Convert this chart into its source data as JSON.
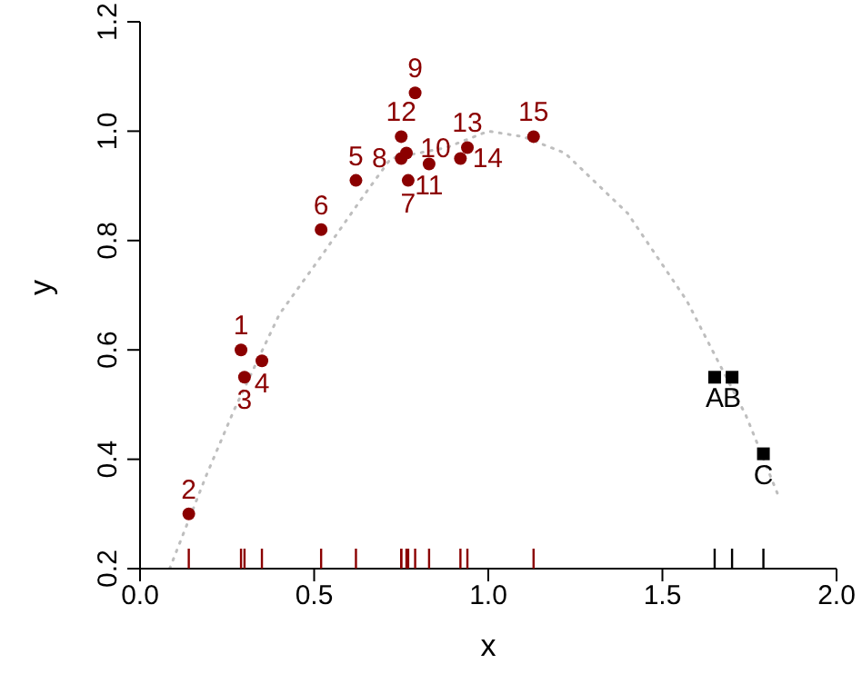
{
  "chart_data": {
    "type": "scatter",
    "xlabel": "x",
    "ylabel": "y",
    "xlim": [
      0,
      2
    ],
    "ylim": [
      0.2,
      1.2
    ],
    "xticks": [
      {
        "value": 0,
        "label": "0.0"
      },
      {
        "value": 0.5,
        "label": "0.5"
      },
      {
        "value": 1,
        "label": "1.0"
      },
      {
        "value": 1.5,
        "label": "1.5"
      },
      {
        "value": 2,
        "label": "2.0"
      }
    ],
    "yticks": [
      {
        "value": 0.2,
        "label": "0.2"
      },
      {
        "value": 0.4,
        "label": "0.4"
      },
      {
        "value": 0.6,
        "label": "0.6"
      },
      {
        "value": 0.8,
        "label": "0.8"
      },
      {
        "value": 1,
        "label": "1.0"
      },
      {
        "value": 1.2,
        "label": "1.2"
      }
    ],
    "grid": false,
    "series": [
      {
        "type": "line",
        "color": "#bebebe",
        "line_style": "dotted",
        "marker": "none",
        "x": [
          0.085,
          0.19,
          0.27,
          0.4,
          0.53,
          0.64,
          0.72,
          0.88,
          1.0,
          1.1,
          1.22,
          1.4,
          1.57,
          1.74,
          1.835
        ],
        "values": [
          0.2,
          0.37,
          0.49,
          0.665,
          0.78,
          0.88,
          0.95,
          0.97,
          1.0,
          0.99,
          0.96,
          0.85,
          0.69,
          0.48,
          0.33
        ]
      },
      {
        "color": "#8b0000",
        "marker": "circle",
        "x": [
          0.29,
          0.14,
          0.3,
          0.35,
          0.62,
          0.52,
          0.77,
          0.75,
          0.79,
          0.765,
          0.83,
          0.75,
          0.94,
          0.92,
          1.13
        ],
        "values": [
          0.6,
          0.3,
          0.55,
          0.58,
          0.91,
          0.82,
          0.91,
          0.95,
          1.07,
          0.96,
          0.94,
          0.99,
          0.97,
          0.95,
          0.99
        ]
      },
      {
        "color": "#000000",
        "marker": "square",
        "x": [
          1.65,
          1.7,
          1.79
        ],
        "values": [
          0.55,
          0.55,
          0.41
        ]
      }
    ],
    "annotations": [
      {
        "text": "1",
        "x": 0.29,
        "y": 0.6
      },
      {
        "text": "2",
        "x": 0.14,
        "y": 0.3
      },
      {
        "text": "3",
        "x": 0.3,
        "y": 0.55
      },
      {
        "text": "4",
        "x": 0.35,
        "y": 0.58
      },
      {
        "text": "5",
        "x": 0.62,
        "y": 0.91
      },
      {
        "text": "6",
        "x": 0.52,
        "y": 0.82
      },
      {
        "text": "7",
        "x": 0.77,
        "y": 0.91
      },
      {
        "text": "8",
        "x": 0.75,
        "y": 0.95
      },
      {
        "text": "9",
        "x": 0.79,
        "y": 1.07
      },
      {
        "text": "10",
        "x": 0.765,
        "y": 0.96
      },
      {
        "text": "11",
        "x": 0.83,
        "y": 0.94
      },
      {
        "text": "12",
        "x": 0.75,
        "y": 0.99
      },
      {
        "text": "13",
        "x": 0.94,
        "y": 0.97
      },
      {
        "text": "14",
        "x": 0.92,
        "y": 0.95
      },
      {
        "text": "15",
        "x": 1.13,
        "y": 0.99
      },
      {
        "text": "A",
        "x": 1.65,
        "y": 0.55
      },
      {
        "text": "B",
        "x": 1.7,
        "y": 0.55
      },
      {
        "text": "C",
        "x": 1.79,
        "y": 0.41
      }
    ]
  }
}
